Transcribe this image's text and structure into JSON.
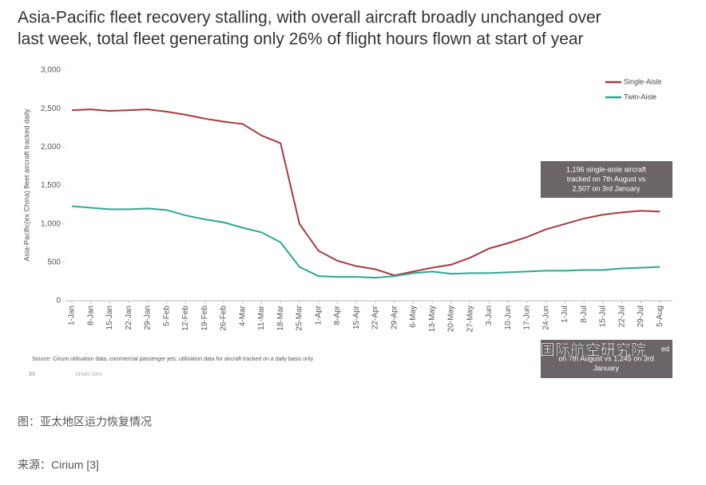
{
  "chart_data": {
    "type": "line",
    "title_lines": [
      "Asia-Pacific fleet recovery stalling, with overall aircraft broadly unchanged  over",
      "last week, total fleet generating  only  26% of flight hours flown at start of year"
    ],
    "y_label": "Asia-Pacific(ex China) fleet aircraft tracked daily",
    "categories": [
      "1-Jan",
      "8-Jan",
      "15-Jan",
      "22-Jan",
      "29-Jan",
      "5-Feb",
      "12-Feb",
      "19-Feb",
      "26-Feb",
      "4-Mar",
      "11-Mar",
      "18-Mar",
      "25-Mar",
      "1-Apr",
      "8-Apr",
      "15-Apr",
      "22-Apr",
      "29-Apr",
      "6-May",
      "13-May",
      "20-May",
      "27-May",
      "3-Jun",
      "10-Jun",
      "17-Jun",
      "24-Jun",
      "1-Jul",
      "8-Jul",
      "15-Jul",
      "22-Jul",
      "29-Jul",
      "5-Aug"
    ],
    "series": [
      {
        "name": "Single-Aisle",
        "color": "#a83a3f",
        "values": [
          2480,
          2490,
          2470,
          2480,
          2490,
          2460,
          2420,
          2370,
          2330,
          2300,
          2150,
          2050,
          1000,
          650,
          520,
          450,
          410,
          330,
          380,
          430,
          470,
          560,
          680,
          750,
          830,
          930,
          1000,
          1070,
          1120,
          1150,
          1170,
          1160
        ]
      },
      {
        "name": "Twin-Aisle",
        "color": "#2aa98a",
        "values": [
          1230,
          1210,
          1190,
          1190,
          1200,
          1180,
          1110,
          1060,
          1020,
          950,
          890,
          760,
          440,
          320,
          310,
          310,
          300,
          320,
          360,
          380,
          350,
          360,
          360,
          370,
          380,
          390,
          390,
          400,
          400,
          420,
          430,
          440
        ]
      }
    ],
    "ylim": [
      0,
      3000
    ],
    "yticks": [
      0,
      500,
      {
        "value": 1000,
        "label": "1,000"
      },
      {
        "value": 1500,
        "label": "1,500"
      },
      {
        "value": 2000,
        "label": "2,000"
      },
      {
        "value": 2500,
        "label": "2,500"
      },
      {
        "value": 3000,
        "label": "3,000"
      }
    ],
    "legend": "top-right",
    "annotations": [
      {
        "lines": [
          "1,196 single-aisle aircraft",
          "tracked on 7th August vs",
          "2,507 on 3rd January"
        ]
      },
      {
        "lines": [
          "ed",
          "on 7th August vs 1,245 on 3rd",
          "January"
        ]
      }
    ],
    "source": "Source:  Cirium utilisation data,  commercial passenger  jets, utilisation data for aircraft tracked on a daily basis only",
    "page_number": "33",
    "site": "cirium.com"
  },
  "watermark": "国际航空研究院",
  "caption": "图：亚太地区运力恢复情况",
  "reference": "来源：Cirium [3]"
}
